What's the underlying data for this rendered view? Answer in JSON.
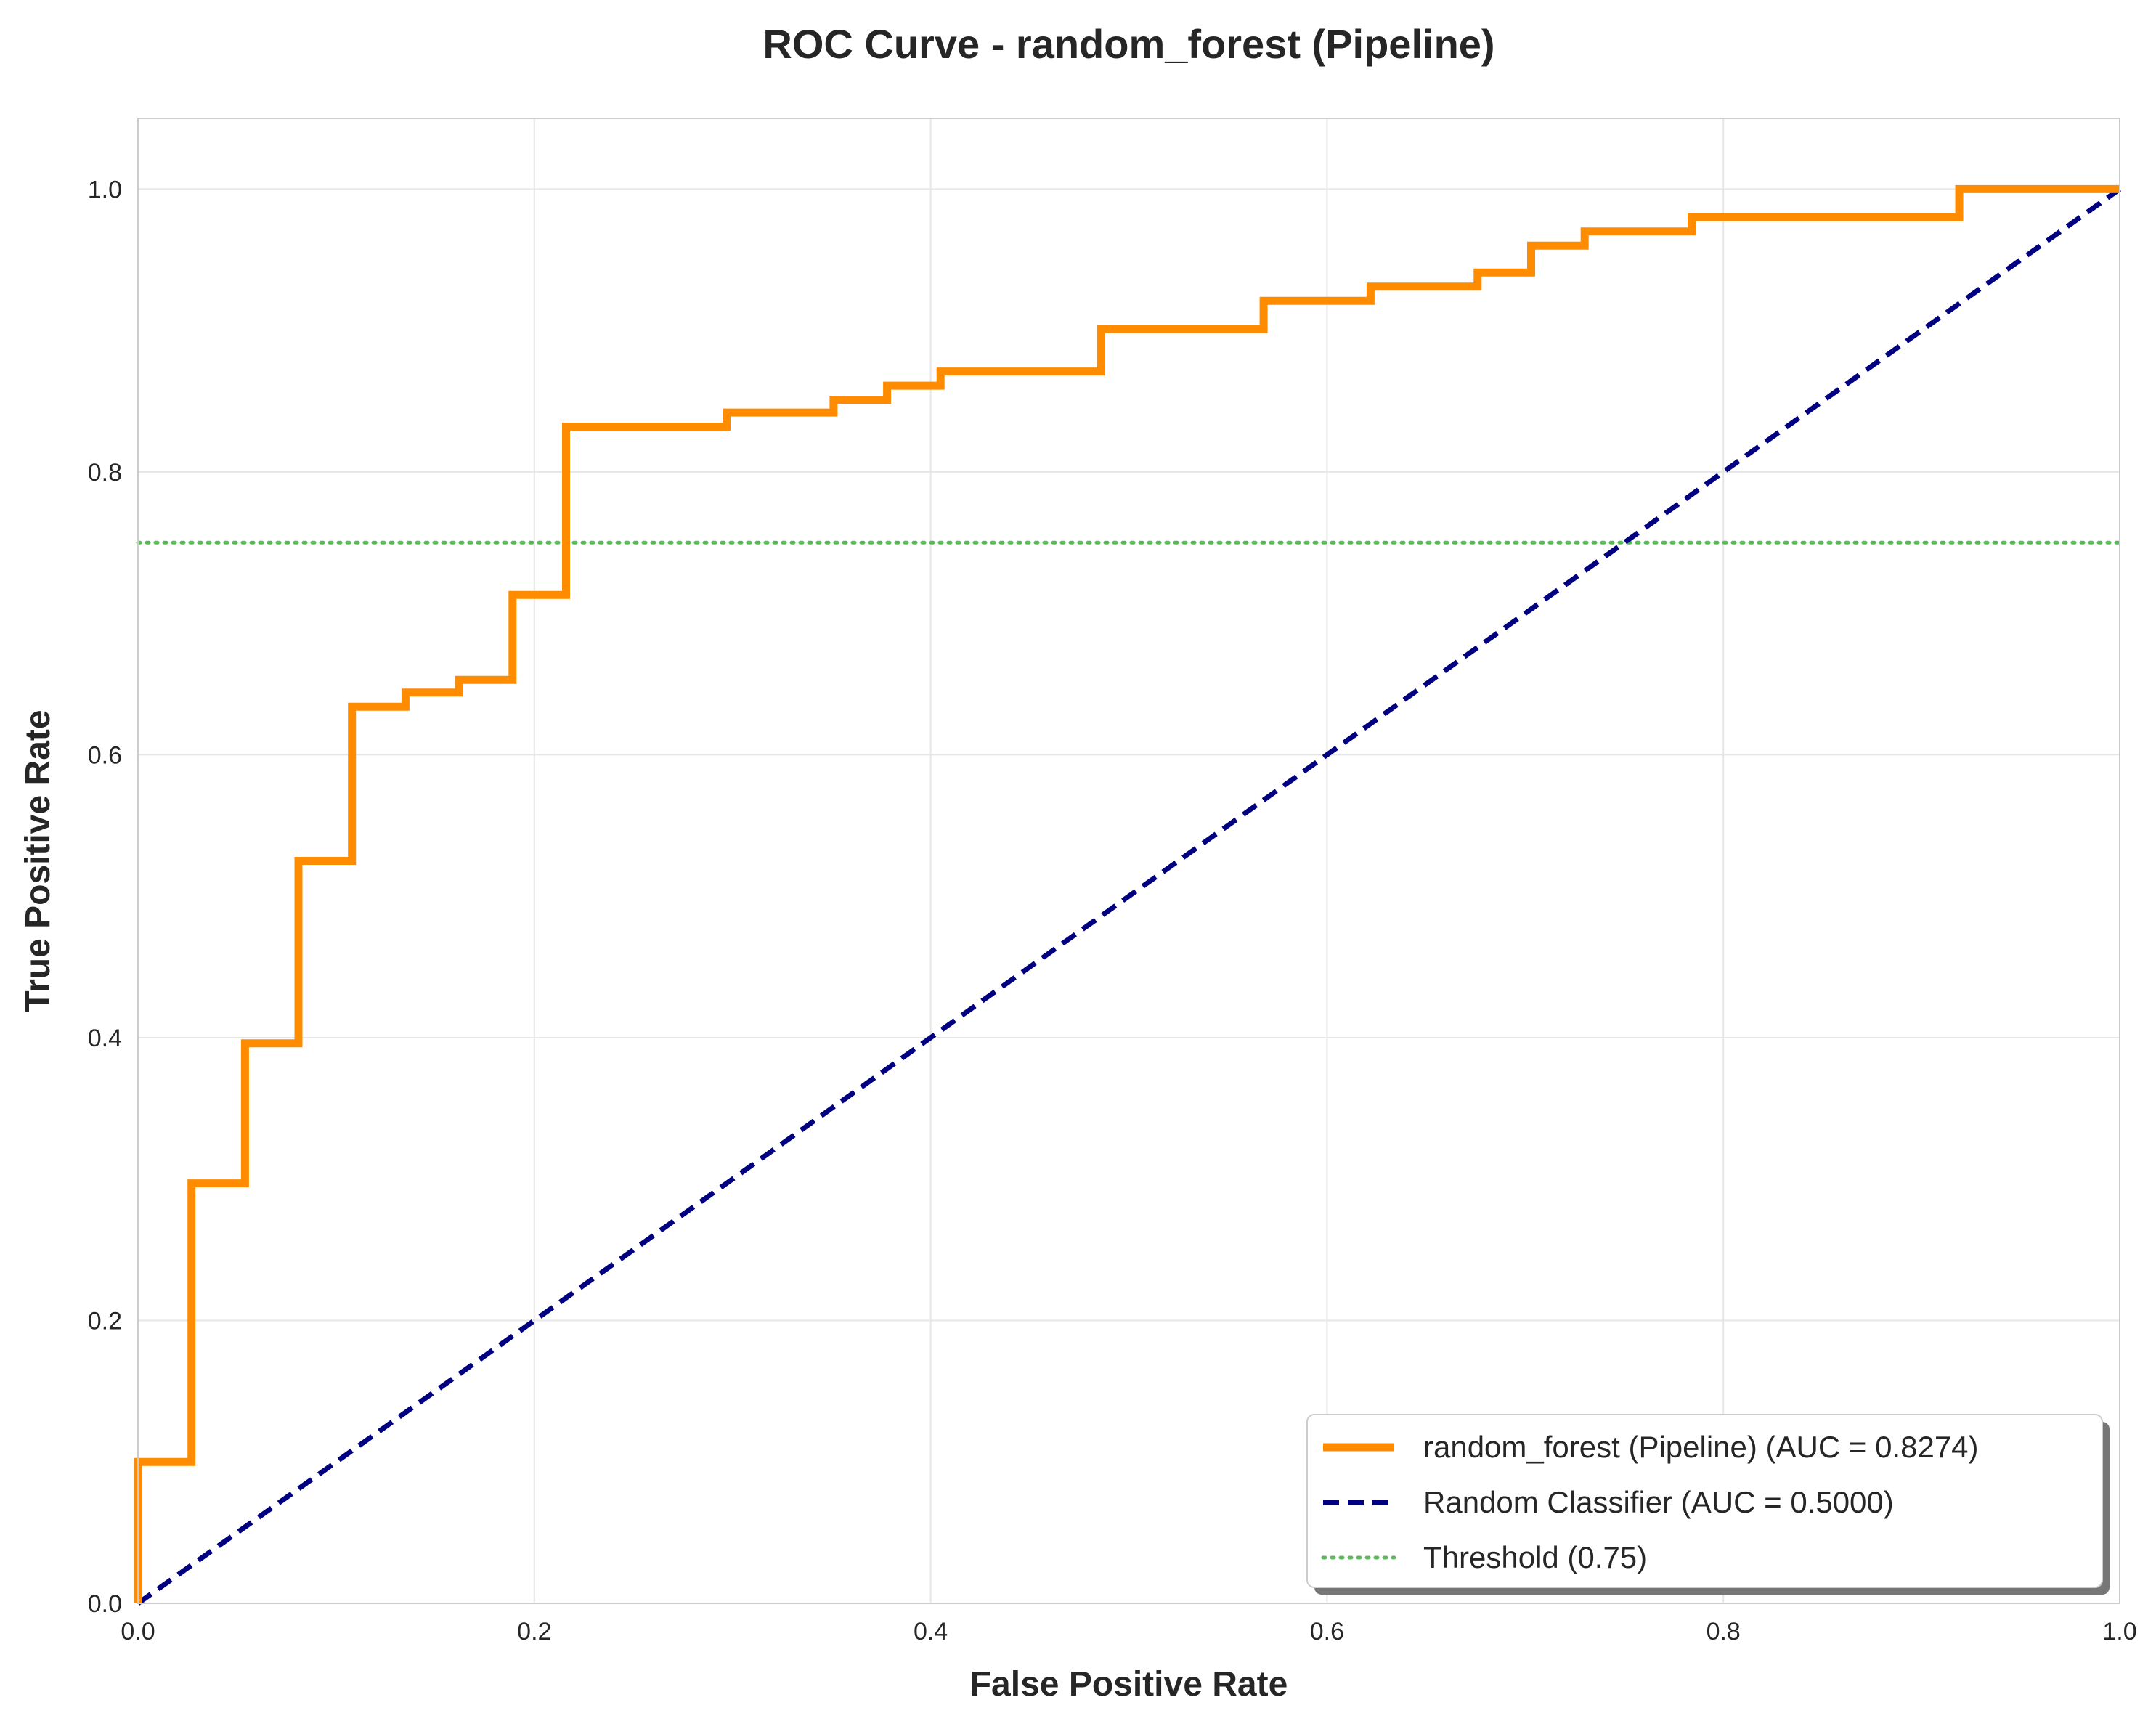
{
  "chart_data": {
    "type": "line",
    "title": "ROC Curve - random_forest (Pipeline)",
    "xlabel": "False Positive Rate",
    "ylabel": "True Positive Rate",
    "xlim": [
      0,
      1
    ],
    "ylim": [
      0,
      1.05
    ],
    "grid": true,
    "legend_position": "bottom-right",
    "x_ticks": [
      "0.0",
      "0.2",
      "0.4",
      "0.6",
      "0.8",
      "1.0"
    ],
    "y_ticks": [
      "0.0",
      "0.2",
      "0.4",
      "0.6",
      "0.8",
      "1.0"
    ],
    "colors": {
      "roc": "#ff8c00",
      "random": "#000080",
      "threshold": "#5cb85c",
      "grid": "#e6e6e6",
      "frame": "#cccccc"
    },
    "series": [
      {
        "name": "random_forest (Pipeline) (AUC = 0.8274)",
        "style": "solid",
        "points": [
          [
            0,
            0
          ],
          [
            0,
            0.1
          ],
          [
            0.027,
            0.1
          ],
          [
            0.027,
            0.297
          ],
          [
            0.054,
            0.297
          ],
          [
            0.054,
            0.396
          ],
          [
            0.081,
            0.396
          ],
          [
            0.081,
            0.525
          ],
          [
            0.108,
            0.525
          ],
          [
            0.108,
            0.634
          ],
          [
            0.135,
            0.634
          ],
          [
            0.135,
            0.644
          ],
          [
            0.162,
            0.644
          ],
          [
            0.162,
            0.653
          ],
          [
            0.189,
            0.653
          ],
          [
            0.189,
            0.713
          ],
          [
            0.216,
            0.713
          ],
          [
            0.216,
            0.832
          ],
          [
            0.297,
            0.832
          ],
          [
            0.297,
            0.842
          ],
          [
            0.351,
            0.842
          ],
          [
            0.351,
            0.851
          ],
          [
            0.378,
            0.851
          ],
          [
            0.378,
            0.861
          ],
          [
            0.405,
            0.861
          ],
          [
            0.405,
            0.871
          ],
          [
            0.486,
            0.871
          ],
          [
            0.486,
            0.901
          ],
          [
            0.568,
            0.901
          ],
          [
            0.568,
            0.921
          ],
          [
            0.622,
            0.921
          ],
          [
            0.622,
            0.931
          ],
          [
            0.676,
            0.931
          ],
          [
            0.676,
            0.941
          ],
          [
            0.703,
            0.941
          ],
          [
            0.703,
            0.96
          ],
          [
            0.73,
            0.96
          ],
          [
            0.73,
            0.97
          ],
          [
            0.784,
            0.97
          ],
          [
            0.784,
            0.98
          ],
          [
            0.919,
            0.98
          ],
          [
            0.919,
            1.0
          ],
          [
            1.0,
            1.0
          ]
        ]
      },
      {
        "name": "Random Classifier (AUC = 0.5000)",
        "style": "dashed",
        "points": [
          [
            0,
            0
          ],
          [
            1,
            1
          ]
        ]
      },
      {
        "name": "Threshold (0.75)",
        "style": "dotted",
        "y": 0.75
      }
    ]
  }
}
